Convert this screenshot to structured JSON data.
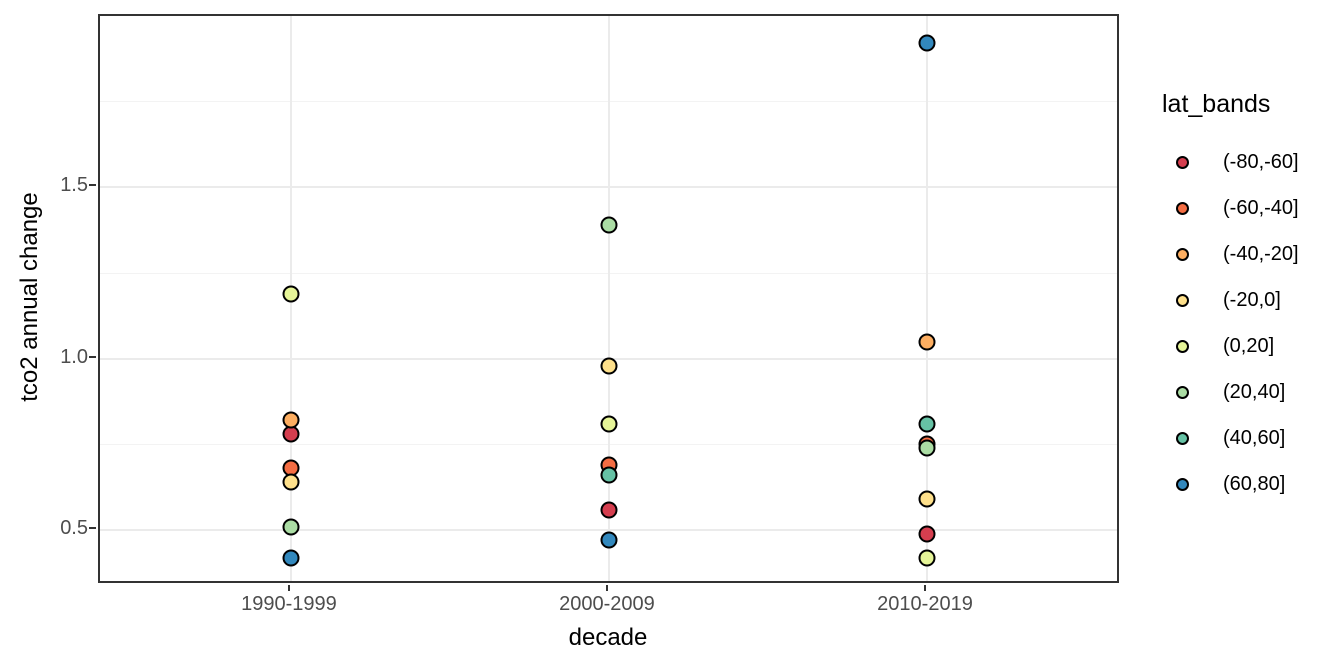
{
  "style": {
    "background": "#FFFFFF",
    "panel_border": "#333333",
    "grid_major": "#EBEBEB",
    "grid_minor": "#F3F3F3",
    "axis_text": "#4D4D4D",
    "title_text": "#000000",
    "point_outline": "#000000"
  },
  "chart_data": {
    "type": "scatter",
    "title": "",
    "xlabel": "decade",
    "ylabel": "tco2 annual change",
    "x_categories": [
      "1990-1999",
      "2000-2009",
      "2010-2019"
    ],
    "y_ticks": [
      0.5,
      1.0,
      1.5
    ],
    "y_tick_labels": [
      "0.5",
      "1.0",
      "1.5"
    ],
    "y_minor_gridlines": [
      0.75,
      1.25,
      1.75
    ],
    "ylim": [
      0.34,
      2.0
    ],
    "grid": "horizontal major+minor lines; vertical major line at each category",
    "legend": {
      "title": "lat_bands",
      "position": "right"
    },
    "series": [
      {
        "name": "(-80,-60]",
        "color": "#D53E4F",
        "values": [
          0.78,
          0.56,
          0.49
        ]
      },
      {
        "name": "(-60,-40]",
        "color": "#F46D43",
        "values": [
          0.68,
          0.69,
          0.75
        ]
      },
      {
        "name": "(-40,-20]",
        "color": "#FDAE61",
        "values": [
          0.82,
          null,
          1.05
        ]
      },
      {
        "name": "(-20,0]",
        "color": "#FEE08B",
        "values": [
          0.64,
          0.98,
          0.59
        ]
      },
      {
        "name": "(0,20]",
        "color": "#E6F598",
        "values": [
          1.19,
          0.81,
          0.42
        ]
      },
      {
        "name": "(20,40]",
        "color": "#ABDDA4",
        "values": [
          0.51,
          1.39,
          0.74
        ]
      },
      {
        "name": "(40,60]",
        "color": "#66C2A5",
        "values": [
          null,
          0.66,
          0.81
        ]
      },
      {
        "name": "(60,80]",
        "color": "#3288BD",
        "values": [
          0.42,
          0.47,
          1.92
        ]
      }
    ]
  }
}
